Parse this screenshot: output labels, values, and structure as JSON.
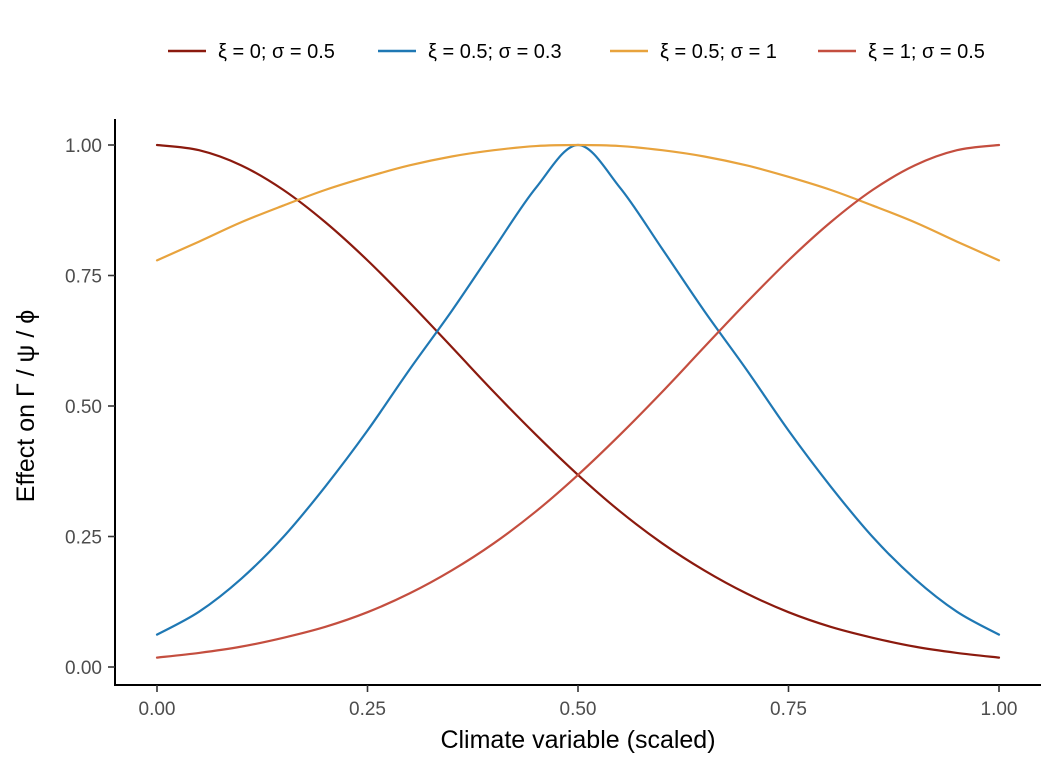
{
  "chart_data": {
    "type": "line",
    "xlabel": "Climate variable (scaled)",
    "ylabel": "Effect on  Γ / ψ / ϕ",
    "xlim": [
      0,
      1
    ],
    "ylim": [
      0,
      1
    ],
    "x_ticks": [
      0,
      0.25,
      0.5,
      0.75,
      1
    ],
    "x_tick_labels": [
      "0.00",
      "0.25",
      "0.50",
      "0.75",
      "1.00"
    ],
    "y_ticks": [
      0,
      0.25,
      0.5,
      0.75,
      1
    ],
    "y_tick_labels": [
      "0.00",
      "0.25",
      "0.50",
      "0.75",
      "1.00"
    ],
    "grid": false,
    "legend_position": "top",
    "x": [
      0,
      0.05,
      0.1,
      0.15,
      0.2,
      0.25,
      0.3,
      0.35,
      0.4,
      0.45,
      0.5,
      0.55,
      0.6,
      0.65,
      0.7,
      0.75,
      0.8,
      0.85,
      0.9,
      0.95,
      1
    ],
    "series": [
      {
        "name": "ξ = 0; σ = 0.5",
        "color": "#8B1A0E",
        "values": [
          1.0,
          0.99,
          0.961,
          0.914,
          0.852,
          0.779,
          0.698,
          0.613,
          0.527,
          0.445,
          0.368,
          0.298,
          0.237,
          0.185,
          0.141,
          0.105,
          0.077,
          0.056,
          0.039,
          0.027,
          0.018
        ]
      },
      {
        "name": "ξ = 0.5; σ = 0.3",
        "color": "#1F78B4",
        "values": [
          0.062,
          0.106,
          0.169,
          0.249,
          0.346,
          0.453,
          0.57,
          0.682,
          0.801,
          0.918,
          1.0,
          0.918,
          0.801,
          0.682,
          0.57,
          0.453,
          0.346,
          0.249,
          0.169,
          0.106,
          0.062
        ]
      },
      {
        "name": "ξ = 0.5; σ = 1",
        "color": "#E8A33D",
        "values": [
          0.779,
          0.815,
          0.852,
          0.884,
          0.914,
          0.939,
          0.961,
          0.978,
          0.99,
          0.998,
          1.0,
          0.998,
          0.99,
          0.978,
          0.961,
          0.939,
          0.914,
          0.884,
          0.852,
          0.815,
          0.779
        ]
      },
      {
        "name": "ξ = 1; σ = 0.5",
        "color": "#C44E3F",
        "values": [
          0.018,
          0.027,
          0.039,
          0.056,
          0.077,
          0.105,
          0.141,
          0.185,
          0.237,
          0.298,
          0.368,
          0.445,
          0.527,
          0.613,
          0.698,
          0.779,
          0.852,
          0.914,
          0.961,
          0.99,
          1.0
        ]
      }
    ]
  }
}
